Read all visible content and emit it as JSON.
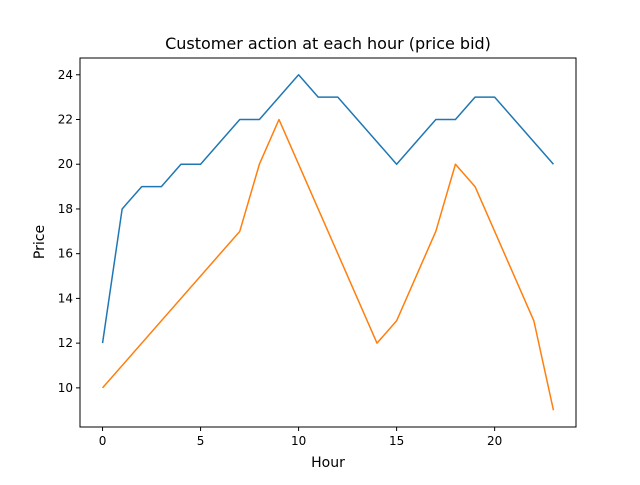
{
  "chart_data": {
    "type": "line",
    "title": "Customer action at each hour (price bid)",
    "xlabel": "Hour",
    "ylabel": "Price",
    "x": [
      0,
      1,
      2,
      3,
      4,
      5,
      6,
      7,
      8,
      9,
      10,
      11,
      12,
      13,
      14,
      15,
      16,
      17,
      18,
      19,
      20,
      21,
      22,
      23
    ],
    "series": [
      {
        "color": "#1f77b4",
        "values": [
          12,
          18,
          19,
          19,
          20,
          20,
          21,
          22,
          22,
          23,
          24,
          23,
          23,
          22,
          21,
          20,
          21,
          22,
          22,
          23,
          23,
          22,
          21,
          20
        ]
      },
      {
        "color": "#ff7f0e",
        "x": [
          0,
          7,
          8,
          9,
          14,
          15,
          17,
          18,
          19,
          22,
          23
        ],
        "values": [
          10,
          17,
          20,
          22,
          12,
          13,
          17,
          20,
          19,
          13,
          9
        ]
      }
    ],
    "xlim": [
      -1.15,
      24.15
    ],
    "ylim": [
      8.25,
      24.75
    ],
    "xticks": [
      0,
      5,
      10,
      15,
      20
    ],
    "yticks": [
      10,
      12,
      14,
      16,
      18,
      20,
      22,
      24
    ],
    "grid": false,
    "legend": "none"
  }
}
